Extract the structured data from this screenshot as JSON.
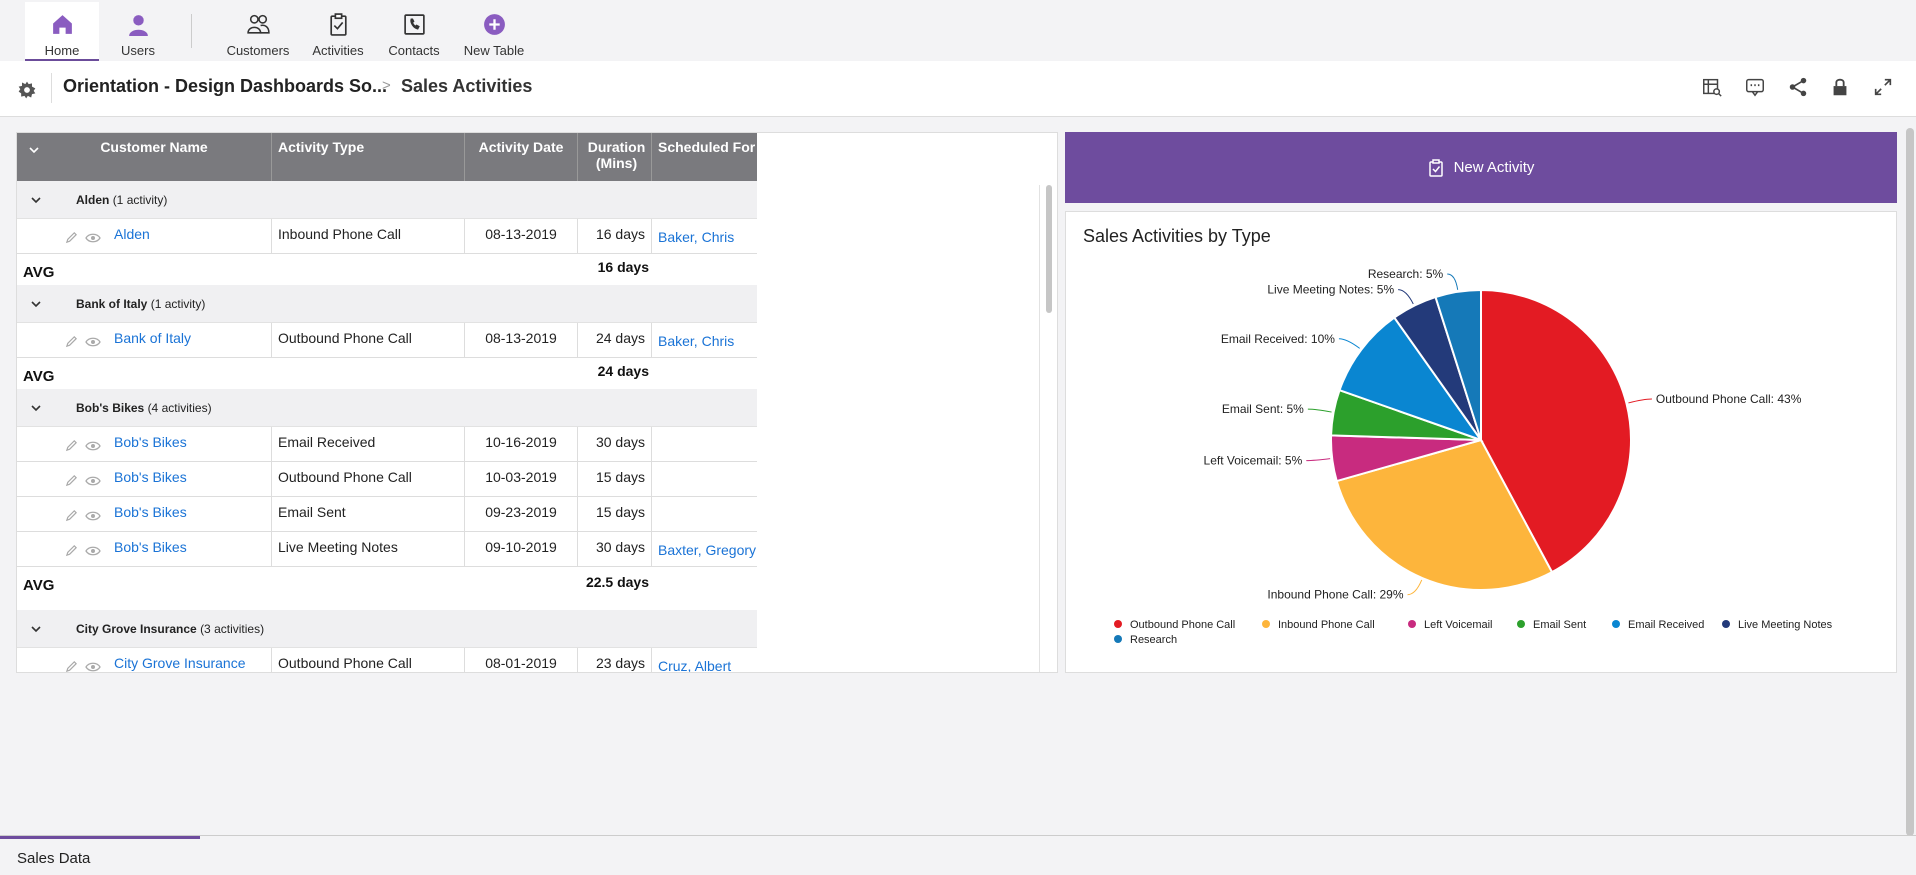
{
  "nav": {
    "items": [
      {
        "label": "Home",
        "icon": "home-icon",
        "active": true
      },
      {
        "label": "Users",
        "icon": "user-icon"
      },
      {
        "label": "Customers",
        "icon": "customers-icon"
      },
      {
        "label": "Activities",
        "icon": "clipboard-check-icon"
      },
      {
        "label": "Contacts",
        "icon": "phone-book-icon"
      },
      {
        "label": "New Table",
        "icon": "plus-circle-icon"
      }
    ]
  },
  "header": {
    "breadcrumb_app": "Orientation - Design Dashboards So...",
    "breadcrumb_sep": ">",
    "breadcrumb_page": "Sales Activities",
    "actions": [
      "table-search-icon",
      "comment-icon",
      "share-icon",
      "lock-icon",
      "expand-icon"
    ]
  },
  "grid": {
    "columns": [
      "Customer Name",
      "Activity Type",
      "Activity Date",
      "Duration (Mins)",
      "Scheduled For"
    ],
    "groups": [
      {
        "name": "Alden",
        "count": "(1 activity)",
        "rows": [
          {
            "customer": "Alden",
            "type": "Inbound Phone Call",
            "date": "08-13-2019",
            "duration": "16 days",
            "scheduled": "Baker, Chris"
          }
        ],
        "avg_label": "AVG",
        "avg": "16 days"
      },
      {
        "name": "Bank of Italy",
        "count": "(1 activity)",
        "rows": [
          {
            "customer": "Bank of Italy",
            "type": "Outbound Phone Call",
            "date": "08-13-2019",
            "duration": "24 days",
            "scheduled": "Baker, Chris"
          }
        ],
        "avg_label": "AVG",
        "avg": "24 days"
      },
      {
        "name": "Bob's Bikes",
        "count": "(4 activities)",
        "rows": [
          {
            "customer": "Bob's Bikes",
            "type": "Email Received",
            "date": "10-16-2019",
            "duration": "30 days",
            "scheduled": ""
          },
          {
            "customer": "Bob's Bikes",
            "type": "Outbound Phone Call",
            "date": "10-03-2019",
            "duration": "15 days",
            "scheduled": ""
          },
          {
            "customer": "Bob's Bikes",
            "type": "Email Sent",
            "date": "09-23-2019",
            "duration": "15 days",
            "scheduled": ""
          },
          {
            "customer": "Bob's Bikes",
            "type": "Live Meeting Notes",
            "date": "09-10-2019",
            "duration": "30 days",
            "scheduled": "Baxter, Gregory"
          }
        ],
        "avg_label": "AVG",
        "avg": "22.5 days"
      },
      {
        "name": "City Grove Insurance",
        "count": "(3 activities)",
        "rows": [
          {
            "customer": "City Grove Insurance",
            "type": "Outbound Phone Call",
            "date": "08-01-2019",
            "duration": "23 days",
            "scheduled": "Cruz, Albert"
          }
        ]
      }
    ]
  },
  "new_activity": {
    "label": "New Activity",
    "icon": "clipboard-check-icon"
  },
  "chart": {
    "title": "Sales Activities by Type"
  },
  "chart_data": {
    "type": "pie",
    "title": "Sales Activities by Type",
    "legend_position": "bottom",
    "slices": [
      {
        "name": "Outbound Phone Call",
        "value": 43,
        "label": "Outbound Phone Call: 43%",
        "color": "#e31b23"
      },
      {
        "name": "Inbound Phone Call",
        "value": 29,
        "label": "Inbound Phone Call: 29%",
        "color": "#fdb53c"
      },
      {
        "name": "Left Voicemail",
        "value": 5,
        "label": "Left Voicemail: 5%",
        "color": "#c82b7f"
      },
      {
        "name": "Email Sent",
        "value": 5,
        "label": "Email Sent: 5%",
        "color": "#2ca02c"
      },
      {
        "name": "Email Received",
        "value": 10,
        "label": "Email Received: 10%",
        "color": "#0a86d1"
      },
      {
        "name": "Live Meeting Notes",
        "value": 5,
        "label": "Live Meeting Notes: 5%",
        "color": "#233a7a"
      },
      {
        "name": "Research",
        "value": 5,
        "label": "Research: 5%",
        "color": "#1579b8"
      }
    ]
  },
  "bottom": {
    "tab_label": "Sales Data"
  }
}
